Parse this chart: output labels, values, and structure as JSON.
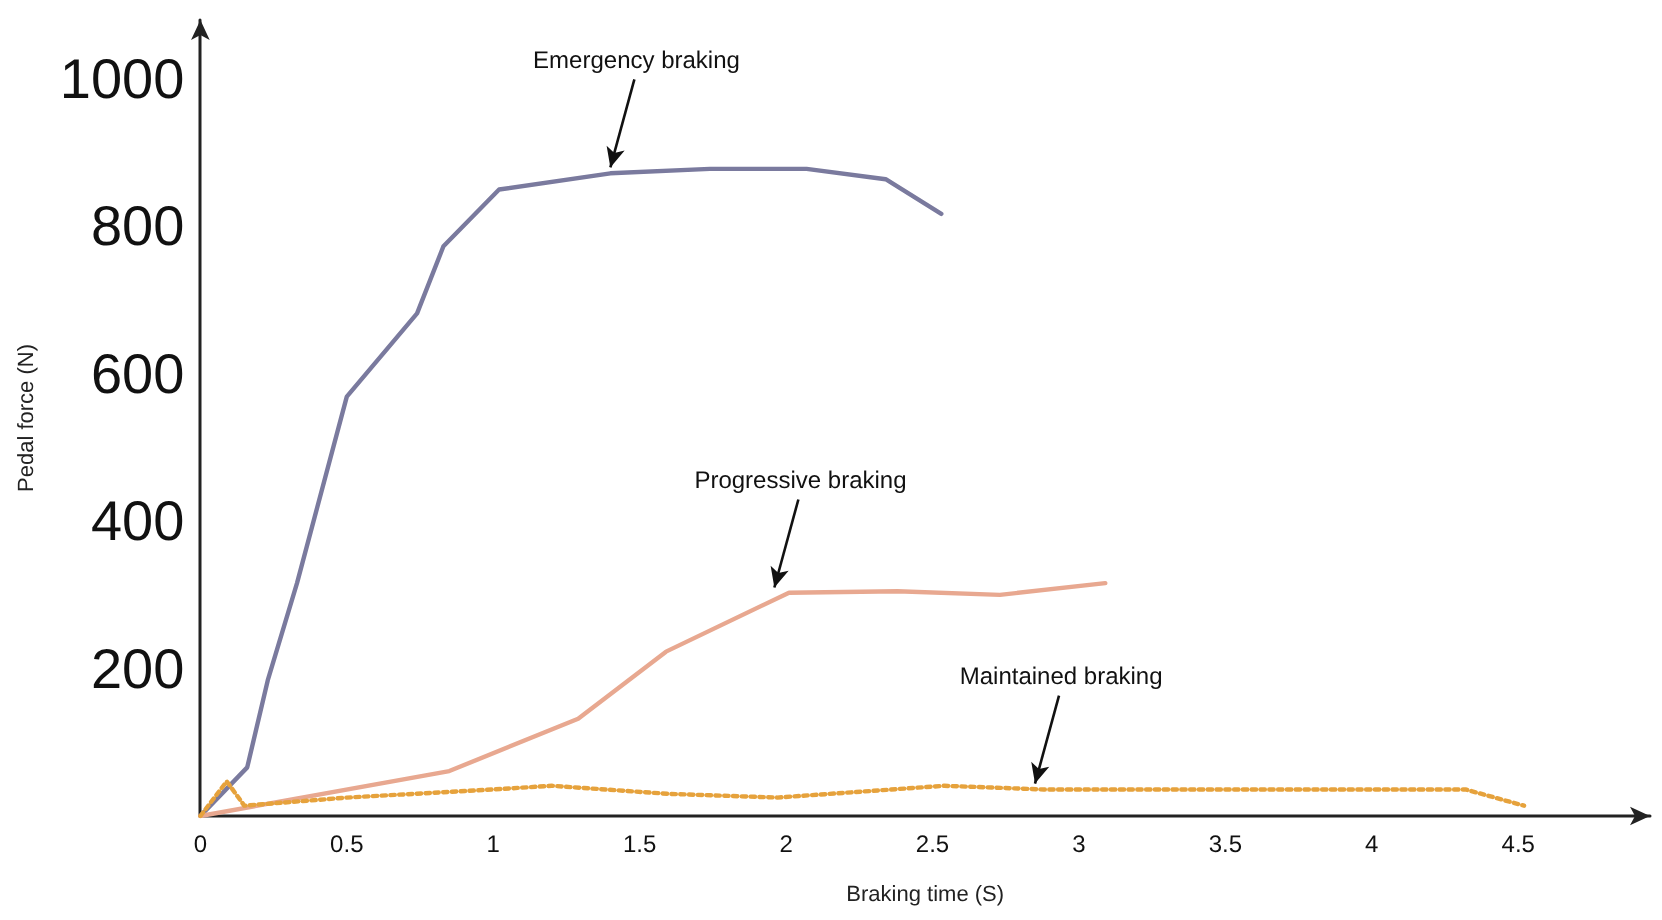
{
  "chart_data": {
    "type": "line",
    "xlabel": "Braking time (S)",
    "ylabel": "Pedal force (N)",
    "xlim": [
      0,
      4.95
    ],
    "xticks": [
      0,
      0.5,
      1,
      1.5,
      2,
      2.5,
      3,
      3.5,
      4,
      4.5
    ],
    "ylim": [
      0,
      1080
    ],
    "yticks": [
      200,
      400,
      600,
      800,
      1000
    ],
    "grid": false,
    "marker": "none",
    "series": [
      {
        "color": "#7a7a9e",
        "x": [
          0,
          0.16,
          0.23,
          0.33,
          0.5,
          0.74,
          0.83,
          1.02,
          1.4,
          1.74,
          2.07,
          2.34,
          2.53
        ],
        "values": [
          0,
          66,
          184,
          316,
          569,
          682,
          773,
          850,
          872,
          878,
          878,
          864,
          817
        ]
      },
      {
        "color": "#e8a890",
        "x": [
          0,
          0.85,
          1.29,
          1.59,
          2.01,
          2.38,
          2.73,
          3.09
        ],
        "values": [
          0,
          61,
          132,
          223,
          303,
          305,
          300,
          316
        ]
      },
      {
        "color": "#e6a23c",
        "line_style": "dotted",
        "x": [
          0,
          0.09,
          0.15,
          0.5,
          1.0,
          1.2,
          1.6,
          1.97,
          2.54,
          2.88,
          4.32,
          4.52
        ],
        "values": [
          0,
          47,
          14,
          25,
          36,
          41,
          30,
          25,
          41,
          36,
          36,
          14
        ]
      }
    ],
    "annotations": [
      {
        "text": "Emergency braking",
        "x": 1.4,
        "y": 880
      },
      {
        "text": "Progressive braking",
        "x": 1.96,
        "y": 310
      },
      {
        "text": "Maintained braking",
        "x": 2.85,
        "y": 44
      }
    ]
  }
}
